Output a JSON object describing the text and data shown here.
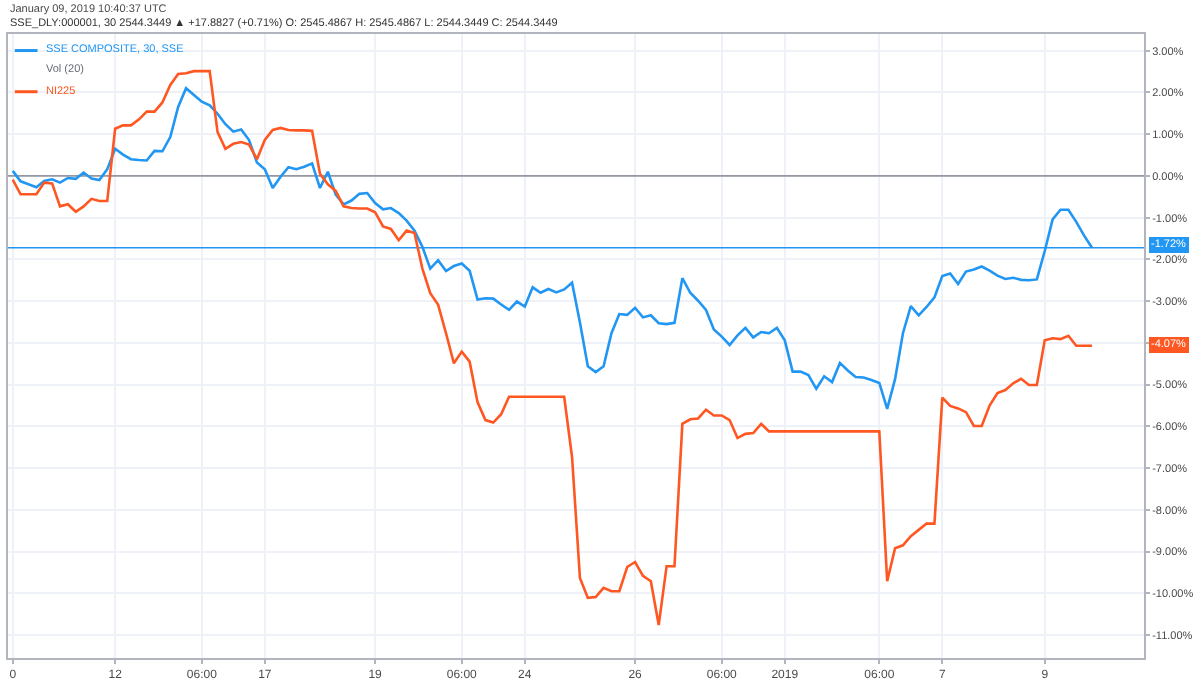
{
  "chart_data": {
    "type": "line",
    "title": "January 09, 2019 10:40:37 UTC",
    "subtitle": "SSE_DLY:000001, 30 2544.3449 ▲ +17.8827 (+0.71%) O: 2545.4867 H: 2545.4867 L: 2544.3449 C: 2544.3449",
    "categories": [
      "0",
      null,
      null,
      null,
      null,
      null,
      null,
      null,
      null,
      null,
      null,
      null,
      null,
      "12",
      null,
      null,
      null,
      null,
      null,
      null,
      null,
      null,
      null,
      null,
      "06:00",
      null,
      null,
      null,
      null,
      null,
      null,
      null,
      "17",
      null,
      null,
      null,
      null,
      null,
      null,
      null,
      null,
      null,
      null,
      null,
      null,
      null,
      "19",
      null,
      null,
      null,
      null,
      null,
      null,
      null,
      null,
      null,
      null,
      "06:00",
      null,
      null,
      null,
      null,
      null,
      null,
      null,
      "24",
      null,
      null,
      null,
      null,
      null,
      null,
      null,
      null,
      null,
      null,
      null,
      null,
      null,
      "26",
      null,
      null,
      null,
      null,
      null,
      null,
      null,
      null,
      null,
      null,
      "06:00",
      null,
      null,
      null,
      null,
      null,
      null,
      null,
      "2019",
      null,
      null,
      null,
      null,
      null,
      null,
      null,
      null,
      null,
      null,
      null,
      "06:00",
      null,
      null,
      null,
      null,
      null,
      null,
      null,
      "7",
      null,
      null,
      null,
      null,
      null,
      null,
      null,
      null,
      null,
      null,
      null,
      null,
      "9",
      null,
      null,
      null,
      null,
      null,
      null,
      null,
      null,
      null,
      null,
      null,
      null
    ],
    "series": [
      {
        "name": "SSE COMPOSITE, 30, SSE",
        "color": "#2196f3",
        "values": [
          0.12,
          -0.13,
          -0.2,
          -0.27,
          -0.12,
          -0.08,
          -0.16,
          -0.05,
          -0.07,
          0.08,
          -0.06,
          -0.1,
          0.16,
          0.65,
          0.51,
          0.4,
          0.38,
          0.37,
          0.6,
          0.59,
          0.93,
          1.65,
          2.1,
          1.94,
          1.78,
          1.69,
          1.49,
          1.24,
          1.06,
          1.11,
          0.86,
          0.32,
          0.16,
          -0.29,
          -0.02,
          0.21,
          0.16,
          0.22,
          0.3,
          -0.29,
          0.1,
          -0.45,
          -0.68,
          -0.59,
          -0.43,
          -0.41,
          -0.65,
          -0.8,
          -0.77,
          -0.89,
          -1.07,
          -1.31,
          -1.7,
          -2.22,
          -2.02,
          -2.28,
          -2.16,
          -2.1,
          -2.27,
          -2.96,
          -2.93,
          -2.94,
          -3.08,
          -3.21,
          -3.01,
          -3.13,
          -2.67,
          -2.8,
          -2.71,
          -2.79,
          -2.72,
          -2.56,
          -3.51,
          -4.56,
          -4.7,
          -4.56,
          -3.77,
          -3.31,
          -3.33,
          -3.16,
          -3.39,
          -3.34,
          -3.53,
          -3.55,
          -3.52,
          -2.45,
          -2.8,
          -2.99,
          -3.21,
          -3.68,
          -3.85,
          -4.05,
          -3.82,
          -3.64,
          -3.87,
          -3.74,
          -3.77,
          -3.64,
          -3.94,
          -4.69,
          -4.69,
          -4.77,
          -5.1,
          -4.8,
          -4.94,
          -4.48,
          -4.66,
          -4.82,
          -4.83,
          -4.89,
          -4.96,
          -5.58,
          -4.87,
          -3.77,
          -3.12,
          -3.34,
          -3.14,
          -2.91,
          -2.4,
          -2.34,
          -2.59,
          -2.29,
          -2.24,
          -2.17,
          -2.27,
          -2.39,
          -2.47,
          -2.44,
          -2.49,
          -2.5,
          -2.48,
          -1.8,
          -1.04,
          -0.81,
          -0.81,
          -1.1,
          -1.43,
          -1.72,
          null,
          null,
          null,
          null,
          null,
          null
        ]
      },
      {
        "name": "NI225",
        "color": "#ff5722",
        "values": [
          -0.09,
          -0.44,
          -0.44,
          -0.44,
          -0.16,
          -0.18,
          -0.73,
          -0.68,
          -0.86,
          -0.73,
          -0.55,
          -0.6,
          -0.6,
          1.13,
          1.21,
          1.21,
          1.35,
          1.54,
          1.54,
          1.76,
          2.18,
          2.44,
          2.46,
          2.51,
          2.51,
          2.51,
          1.05,
          0.65,
          0.77,
          0.81,
          0.75,
          0.4,
          0.86,
          1.1,
          1.15,
          1.1,
          1.09,
          1.09,
          1.08,
          0.05,
          -0.2,
          -0.36,
          -0.73,
          -0.77,
          -0.78,
          -0.78,
          -0.87,
          -1.21,
          -1.27,
          -1.54,
          -1.31,
          -1.37,
          -2.22,
          -2.81,
          -3.09,
          -3.77,
          -4.49,
          -4.21,
          -4.45,
          -5.42,
          -5.85,
          -5.91,
          -5.71,
          -5.29,
          -5.29,
          -5.29,
          -5.29,
          -5.29,
          -5.29,
          -5.29,
          -5.29,
          -6.74,
          -9.63,
          -10.11,
          -10.09,
          -9.87,
          -9.95,
          -9.95,
          -9.37,
          -9.25,
          -9.58,
          -9.71,
          -10.76,
          -9.35,
          -9.35,
          -5.94,
          -5.83,
          -5.81,
          -5.6,
          -5.74,
          -5.74,
          -5.85,
          -6.28,
          -6.18,
          -6.16,
          -5.94,
          -6.12,
          -6.12,
          -6.12,
          -6.12,
          -6.12,
          -6.12,
          -6.12,
          -6.12,
          -6.12,
          -6.12,
          -6.12,
          -6.12,
          -6.12,
          -6.12,
          -6.12,
          -9.71,
          -8.92,
          -8.85,
          -8.63,
          -8.48,
          -8.33,
          -8.33,
          -5.31,
          -5.51,
          -5.57,
          -5.66,
          -5.99,
          -5.99,
          -5.5,
          -5.2,
          -5.13,
          -4.97,
          -4.86,
          -5.01,
          -5.01,
          -3.94,
          -3.89,
          -3.91,
          -3.83,
          -4.07,
          -4.07,
          -4.07,
          null,
          null,
          null,
          null,
          null,
          null
        ]
      }
    ],
    "annotations": [
      "Vol (20)",
      {
        "text": "-4.07%",
        "y": -4.07
      }
    ],
    "ref_lines": [
      {
        "axis": "y",
        "value": 0,
        "color": "#9598a1"
      },
      {
        "axis": "y",
        "value": -1.72,
        "label": "-1.72%",
        "color": "#2196f3"
      }
    ],
    "ylim": [
      -11.55,
      3.4
    ],
    "yticks": [
      {
        "value": 3,
        "label": "3.00%"
      },
      {
        "value": 2,
        "label": "2.00%"
      },
      {
        "value": 1,
        "label": "1.00%"
      },
      {
        "value": 0,
        "label": "0.00%"
      },
      {
        "value": -1,
        "label": "-1.00%"
      },
      {
        "value": -2,
        "label": "-2.00%"
      },
      {
        "value": -3,
        "label": "-3.00%"
      },
      {
        "value": -4,
        "label": null
      },
      {
        "value": -5,
        "label": "-5.00%"
      },
      {
        "value": -6,
        "label": "-6.00%"
      },
      {
        "value": -7,
        "label": "-7.00%"
      },
      {
        "value": -8,
        "label": "-8.00%"
      },
      {
        "value": -9,
        "label": "-9.00%"
      },
      {
        "value": -10,
        "label": "-10.00%"
      },
      {
        "value": -11,
        "label": "-11.00%"
      }
    ],
    "grid": true,
    "legend": "top left",
    "marker": "none",
    "line_style": "solid"
  }
}
